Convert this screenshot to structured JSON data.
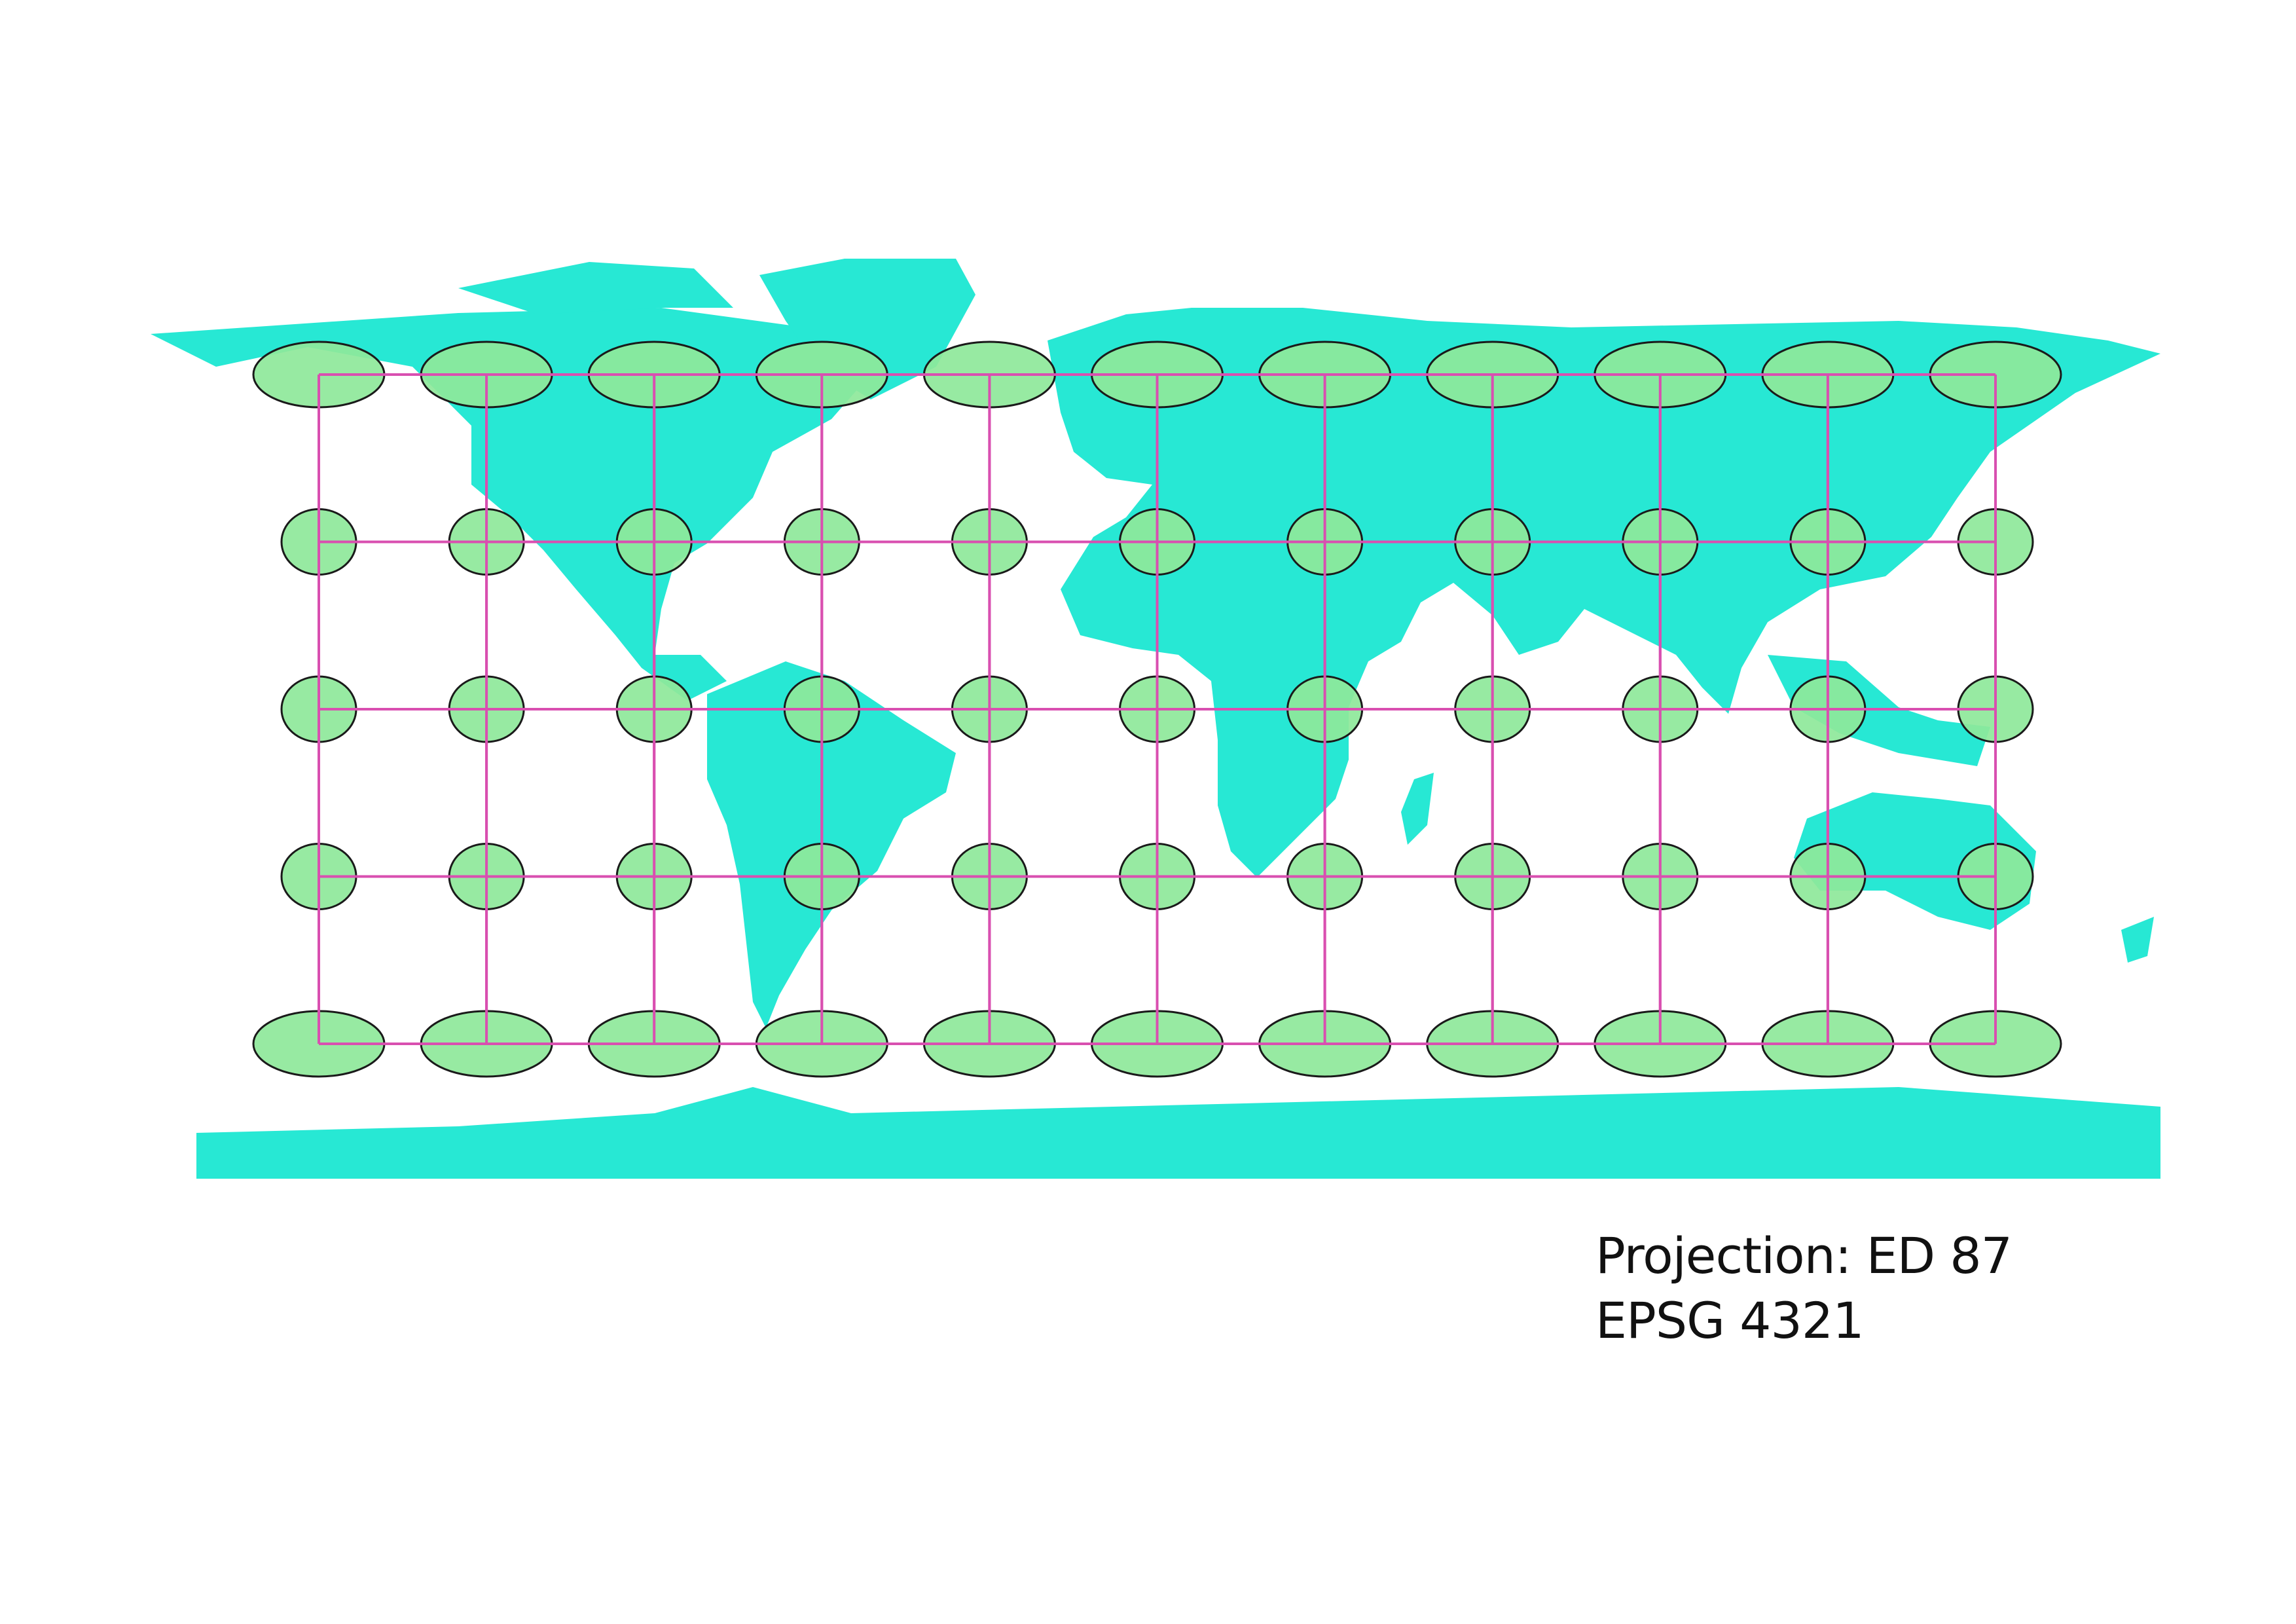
{
  "map": {
    "land_color": "#27E8D4",
    "ocean_color": "#FFFFFF",
    "border_color": "#FFFFFF",
    "grid_color": "#D94FB0",
    "ellipse_fill": "#8EE89A",
    "ellipse_stroke": "#1A1A1A",
    "graticule": {
      "columns": 11,
      "rows": 5
    },
    "indicatrix_rows": [
      {
        "shape": "wide"
      },
      {
        "shape": "round"
      },
      {
        "shape": "round"
      },
      {
        "shape": "round"
      },
      {
        "shape": "wide"
      }
    ]
  },
  "caption": {
    "line1": "Projection: ED 87",
    "line2": "EPSG 4321"
  }
}
